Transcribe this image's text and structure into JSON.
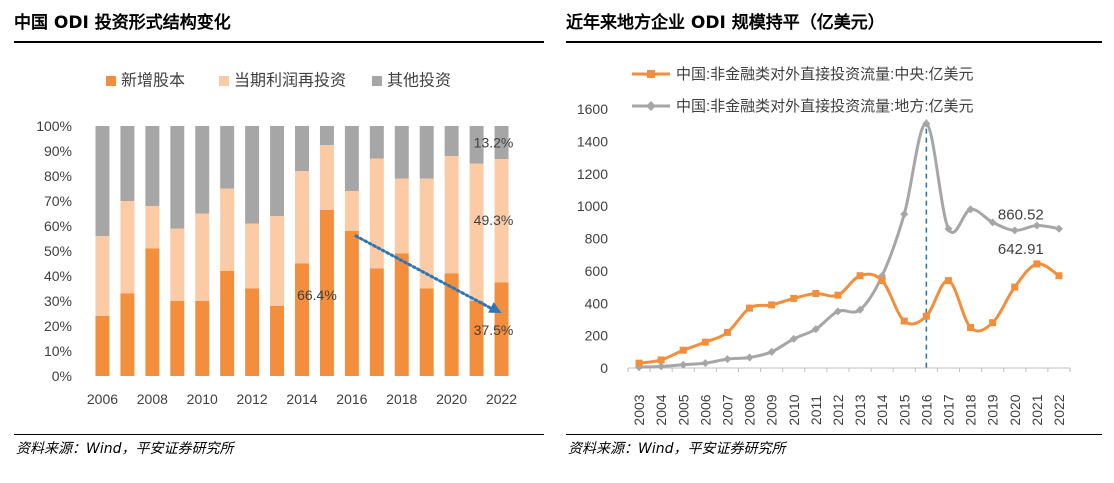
{
  "left": {
    "title": "中国 ODI 投资形式结构变化",
    "source": "资料来源：Wind，平安证券研究所"
  },
  "right": {
    "title": "近年来地方企业 ODI 规模持平（亿美元）",
    "source": "资料来源：Wind，平安证券研究所"
  },
  "colors": {
    "new_equity": "#F28E3C",
    "reinvest": "#FBCBA6",
    "other": "#A6A6A6",
    "arrow": "#2E75B6",
    "central": "#F28E3C",
    "local": "#A6A6A6",
    "dashed": "#2E75B6"
  },
  "chart_data": [
    {
      "type": "bar",
      "stacked": true,
      "categories": [
        "2006",
        "2007",
        "2008",
        "2009",
        "2010",
        "2011",
        "2012",
        "2013",
        "2014",
        "2015",
        "2016",
        "2017",
        "2018",
        "2019",
        "2020",
        "2021",
        "2022"
      ],
      "x_tick_labels": [
        "2006",
        "2008",
        "2010",
        "2012",
        "2014",
        "2016",
        "2018",
        "2020",
        "2022"
      ],
      "series": [
        {
          "name": "新增股本",
          "values": [
            24,
            33,
            51,
            30,
            30,
            42,
            35,
            28,
            45,
            66.4,
            58,
            43,
            49,
            35,
            41,
            30,
            37.5
          ]
        },
        {
          "name": "当期利润再投资",
          "values": [
            32,
            37,
            17,
            29,
            35,
            33,
            26,
            36,
            37,
            26,
            16,
            44,
            30,
            44,
            47,
            55,
            49.3
          ]
        },
        {
          "name": "其他投资",
          "values": [
            44,
            30,
            32,
            41,
            35,
            25,
            39,
            36,
            18,
            7.6,
            26,
            13,
            21,
            21,
            12,
            15,
            13.2
          ]
        }
      ],
      "yticks": [
        "0%",
        "10%",
        "20%",
        "30%",
        "40%",
        "50%",
        "60%",
        "70%",
        "80%",
        "90%",
        "100%"
      ],
      "ylim": [
        0,
        100
      ],
      "annotations": [
        "66.4%",
        "37.5%",
        "49.3%",
        "13.2%"
      ],
      "arrow": {
        "from": {
          "x": "2016",
          "y": 56
        },
        "to": {
          "x": "2022",
          "y": 26
        }
      },
      "legend": "top",
      "grid": false
    },
    {
      "type": "line",
      "x": [
        "2003",
        "2004",
        "2005",
        "2006",
        "2007",
        "2008",
        "2009",
        "2010",
        "2011",
        "2012",
        "2013",
        "2014",
        "2015",
        "2016",
        "2017",
        "2018",
        "2019",
        "2020",
        "2021",
        "2022"
      ],
      "series": [
        {
          "name": "中国:非金融类对外直接投资流量:中央:亿美元",
          "values": [
            30,
            50,
            110,
            160,
            220,
            370,
            390,
            430,
            460,
            450,
            570,
            540,
            290,
            320,
            540,
            250,
            280,
            500,
            642.91,
            570
          ]
        },
        {
          "name": "中国:非金融类对外直接投资流量:地方:亿美元",
          "values": [
            5,
            10,
            20,
            30,
            55,
            65,
            100,
            180,
            240,
            350,
            360,
            570,
            950,
            1510,
            860,
            980,
            900,
            850,
            880,
            860.52
          ]
        }
      ],
      "yticks": [
        "0",
        "200",
        "400",
        "600",
        "800",
        "1000",
        "1200",
        "1400",
        "1600"
      ],
      "ylim": [
        0,
        1600
      ],
      "data_labels": [
        "860.52",
        "642.91"
      ],
      "vline_at": "2016",
      "legend": "top-left",
      "grid": false
    }
  ]
}
